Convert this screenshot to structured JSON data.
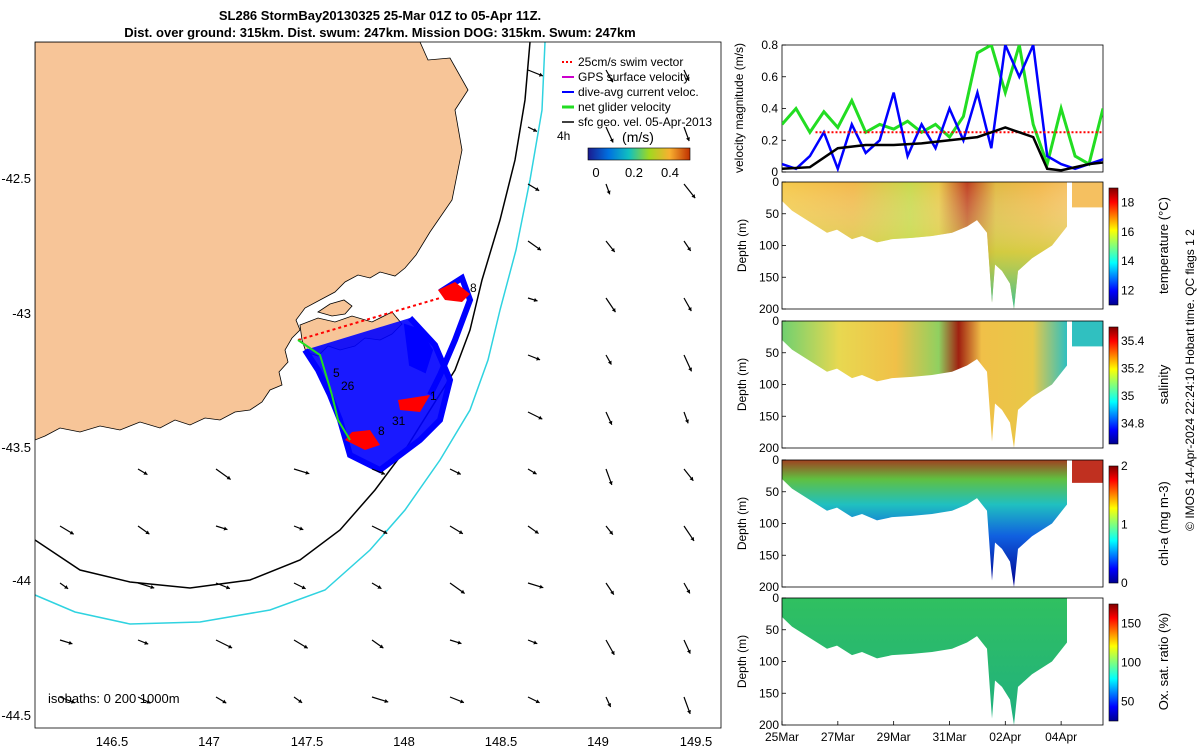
{
  "header": {
    "title_line1": "SL286 StormBay20130325 25-Mar 01Z to 05-Apr 11Z.",
    "title_line2": "Dist. over ground: 315km. Dist. swum: 247km. Mission DOG: 315km. Swum: 247km"
  },
  "credit": "© IMOS 14-Apr-2024 22:24:10 Hobart time. QC flags 1 2",
  "colors": {
    "land": "#f7c598",
    "isobath_200": "#000000",
    "isobath_1000": "#2fd3e0",
    "track_blue": "#0000ff",
    "track_red": "#ff0000",
    "net_green": "#22dd22"
  },
  "map": {
    "xticks": [
      "146.5",
      "147",
      "147.5",
      "148",
      "148.5",
      "149",
      "149.5"
    ],
    "yticks": [
      "-42.5",
      "-43",
      "-43.5",
      "-44",
      "-44.5"
    ],
    "isobath_label": "isobaths: 0   200  1000m",
    "legend": [
      "25cm/s swim vector",
      "GPS surface velocity",
      "dive-avg current veloc.",
      "net glider velocity",
      "sfc geo. vel. 05-Apr-2013"
    ],
    "colorbar_label": "(m/s)",
    "colorbar_ticks": [
      "0",
      "0.2",
      "0.4"
    ],
    "track_labels": [
      "5",
      "26",
      "1",
      "31",
      "8",
      "4h",
      "8"
    ]
  },
  "chart_data": [
    {
      "type": "line",
      "ylabel": "velocity magnitude (m/s)",
      "ylim": [
        0,
        0.8
      ],
      "yticks": [
        "0",
        "0.2",
        "0.4",
        "0.6",
        "0.8"
      ],
      "series": [
        {
          "name": "net glider velocity",
          "color": "#22dd22",
          "x": [
            25.0,
            25.5,
            26.0,
            26.5,
            27.0,
            27.5,
            28.0,
            28.5,
            29.0,
            29.5,
            30.0,
            30.5,
            31.0,
            31.5,
            32.0,
            32.5,
            33.0,
            33.5,
            34.0,
            34.5,
            35.0,
            35.5,
            36.0,
            36.5
          ],
          "values": [
            0.3,
            0.4,
            0.25,
            0.38,
            0.28,
            0.45,
            0.25,
            0.3,
            0.27,
            0.32,
            0.25,
            0.3,
            0.22,
            0.35,
            0.75,
            0.8,
            0.5,
            0.8,
            0.3,
            0.05,
            0.4,
            0.1,
            0.05,
            0.4
          ]
        },
        {
          "name": "dive-avg current veloc.",
          "color": "#0000ff",
          "x": [
            25.0,
            25.5,
            26.0,
            26.5,
            27.0,
            27.5,
            28.0,
            28.5,
            29.0,
            29.5,
            30.0,
            30.5,
            31.0,
            31.5,
            32.0,
            32.5,
            33.0,
            33.5,
            34.0,
            34.5,
            35.0,
            35.5,
            36.0,
            36.5
          ],
          "values": [
            0.05,
            0.02,
            0.1,
            0.25,
            0.02,
            0.3,
            0.12,
            0.2,
            0.5,
            0.1,
            0.3,
            0.15,
            0.4,
            0.2,
            0.5,
            0.15,
            0.8,
            0.6,
            0.8,
            0.1,
            0.05,
            0.02,
            0.05,
            0.08
          ]
        },
        {
          "name": "25cm/s swim vector",
          "color": "#ff0000",
          "x": [
            26.2,
            36.5
          ],
          "values": [
            0.25,
            0.25
          ]
        },
        {
          "name": "sfc geo. vel. 05-Apr-2013",
          "color": "#000000",
          "x": [
            25.0,
            26.0,
            27.0,
            28.0,
            29.0,
            30.0,
            31.0,
            32.0,
            32.5,
            33.0,
            33.5,
            34.0,
            34.5,
            35.0,
            36.0,
            36.5
          ],
          "values": [
            0.02,
            0.03,
            0.15,
            0.17,
            0.17,
            0.18,
            0.2,
            0.22,
            0.25,
            0.28,
            0.25,
            0.22,
            0.02,
            0.01,
            0.05,
            0.06
          ]
        }
      ]
    },
    {
      "type": "heatmap",
      "ylabel": "Depth (m)",
      "cbar_label": "temperature (°C)",
      "ylim": [
        200,
        0
      ],
      "yticks": [
        "0",
        "50",
        "100",
        "150",
        "200"
      ],
      "cbar_ticks": [
        "12",
        "14",
        "16",
        "18"
      ],
      "cbar_range": [
        11,
        19
      ]
    },
    {
      "type": "heatmap",
      "ylabel": "Depth (m)",
      "cbar_label": "salinity",
      "ylim": [
        200,
        0
      ],
      "yticks": [
        "0",
        "50",
        "100",
        "150",
        "200"
      ],
      "cbar_ticks": [
        "34.8",
        "35",
        "35.2",
        "35.4"
      ],
      "cbar_range": [
        34.65,
        35.5
      ]
    },
    {
      "type": "heatmap",
      "ylabel": "Depth (m)",
      "cbar_label": "chl-a (mg m-3)",
      "ylim": [
        200,
        0
      ],
      "yticks": [
        "0",
        "50",
        "100",
        "150",
        "200"
      ],
      "cbar_ticks": [
        "0",
        "1",
        "2"
      ],
      "cbar_range": [
        0,
        2
      ]
    },
    {
      "type": "heatmap",
      "ylabel": "Depth (m)",
      "cbar_label": "Ox. sat. ratio (%)",
      "ylim": [
        200,
        0
      ],
      "yticks": [
        "0",
        "50",
        "100",
        "150",
        "200"
      ],
      "cbar_ticks": [
        "50",
        "100",
        "150"
      ],
      "cbar_range": [
        25,
        175
      ],
      "xticks": [
        "25Mar",
        "27Mar",
        "29Mar",
        "31Mar",
        "02Apr",
        "04Apr"
      ]
    }
  ]
}
